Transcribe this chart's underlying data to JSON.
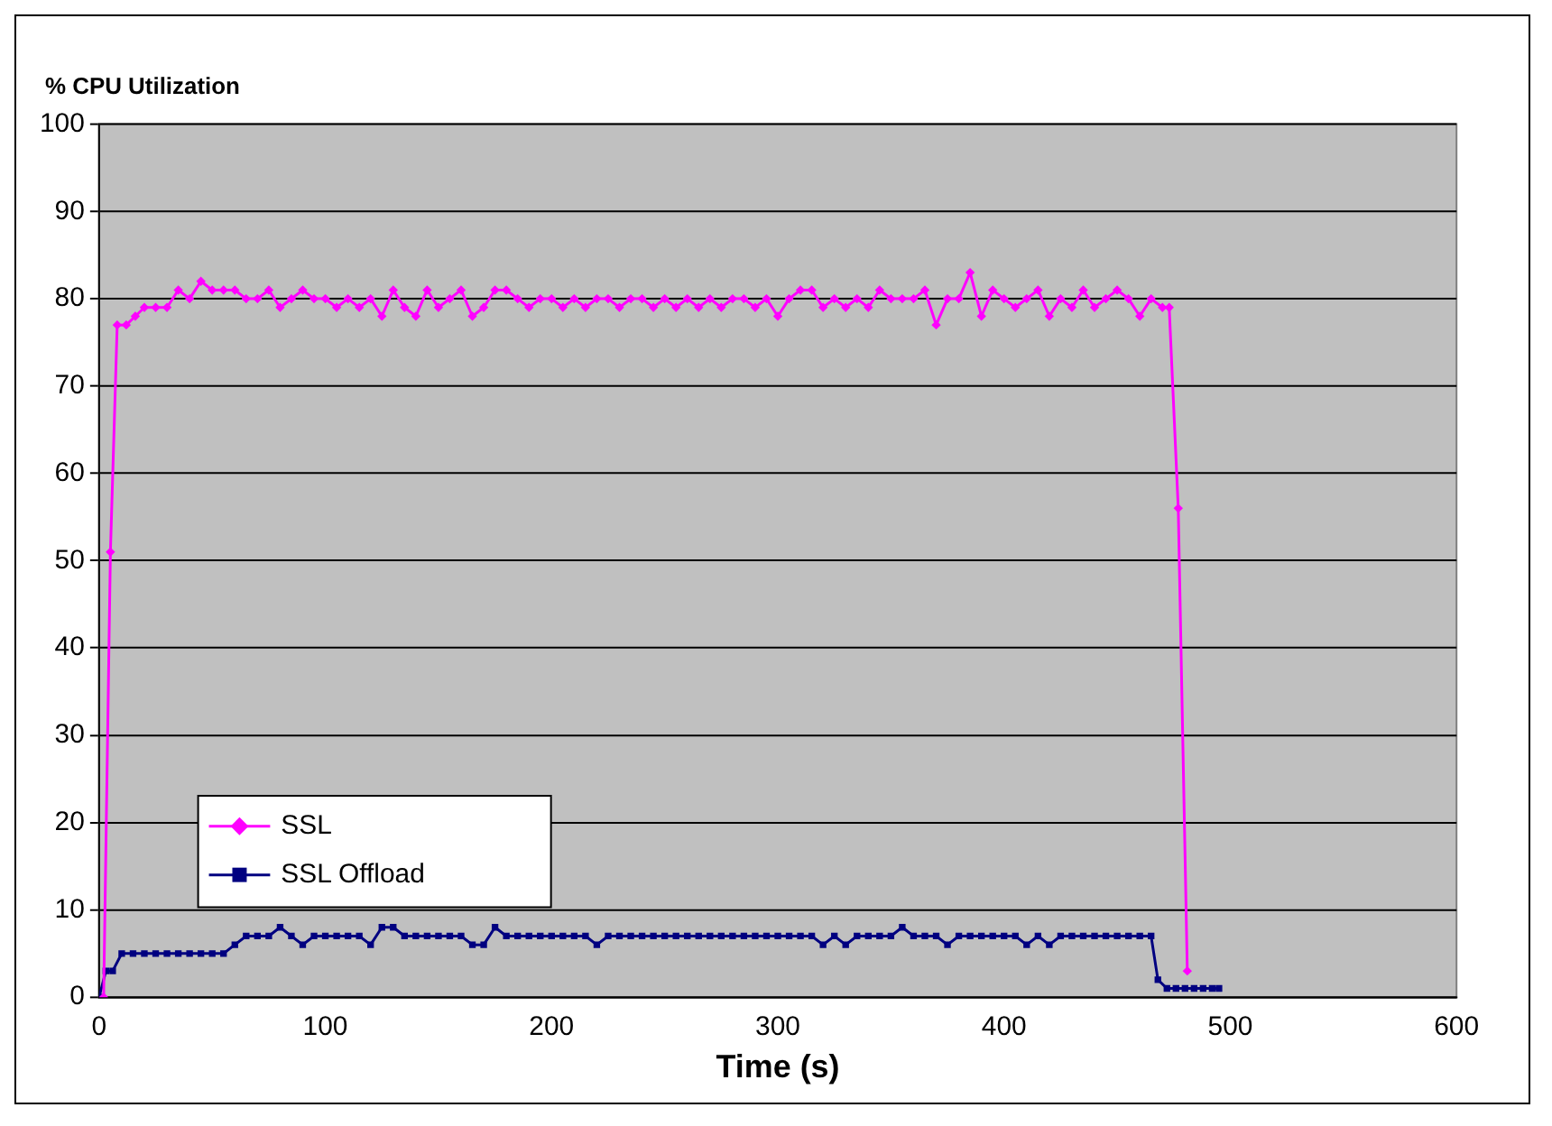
{
  "chart_data": {
    "type": "line",
    "xlabel": "Time (s)",
    "ylabel": "% CPU Utilization",
    "xlim": [
      0,
      600
    ],
    "xticks": [
      0,
      100,
      200,
      300,
      400,
      500,
      600
    ],
    "ylim": [
      0,
      100
    ],
    "yticks": [
      0,
      10,
      20,
      30,
      40,
      50,
      60,
      70,
      80,
      90,
      100
    ],
    "grid": "y",
    "legend": "bottom left",
    "series": [
      {
        "name": "SSL",
        "color": "#ff00ff",
        "marker": "diamond",
        "x": [
          2,
          5,
          8,
          12,
          16,
          20,
          25,
          30,
          35,
          40,
          45,
          50,
          55,
          60,
          65,
          70,
          75,
          80,
          85,
          90,
          95,
          100,
          105,
          110,
          115,
          120,
          125,
          130,
          135,
          140,
          145,
          150,
          155,
          160,
          165,
          170,
          175,
          180,
          185,
          190,
          195,
          200,
          205,
          210,
          215,
          220,
          225,
          230,
          235,
          240,
          245,
          250,
          255,
          260,
          265,
          270,
          275,
          280,
          285,
          290,
          295,
          300,
          305,
          310,
          315,
          320,
          325,
          330,
          335,
          340,
          345,
          350,
          355,
          360,
          365,
          370,
          375,
          380,
          385,
          390,
          395,
          400,
          405,
          410,
          415,
          420,
          425,
          430,
          435,
          440,
          445,
          450,
          455,
          460,
          465,
          470,
          473,
          477,
          481
        ],
        "values": [
          0,
          51,
          77,
          77,
          78,
          79,
          79,
          79,
          81,
          80,
          82,
          81,
          81,
          81,
          80,
          80,
          81,
          79,
          80,
          81,
          80,
          80,
          79,
          80,
          79,
          80,
          78,
          81,
          79,
          78,
          81,
          79,
          80,
          81,
          78,
          79,
          81,
          81,
          80,
          79,
          80,
          80,
          79,
          80,
          79,
          80,
          80,
          79,
          80,
          80,
          79,
          80,
          79,
          80,
          79,
          80,
          79,
          80,
          80,
          79,
          80,
          78,
          80,
          81,
          81,
          79,
          80,
          79,
          80,
          79,
          81,
          80,
          80,
          80,
          81,
          77,
          80,
          80,
          83,
          78,
          81,
          80,
          79,
          80,
          81,
          78,
          80,
          79,
          81,
          79,
          80,
          81,
          80,
          78,
          80,
          79,
          79,
          56,
          3
        ]
      },
      {
        "name": "SSL Offload",
        "color": "#000080",
        "marker": "square",
        "x": [
          0,
          3,
          6,
          10,
          15,
          20,
          25,
          30,
          35,
          40,
          45,
          50,
          55,
          60,
          65,
          70,
          75,
          80,
          85,
          90,
          95,
          100,
          105,
          110,
          115,
          120,
          125,
          130,
          135,
          140,
          145,
          150,
          155,
          160,
          165,
          170,
          175,
          180,
          185,
          190,
          195,
          200,
          205,
          210,
          215,
          220,
          225,
          230,
          235,
          240,
          245,
          250,
          255,
          260,
          265,
          270,
          275,
          280,
          285,
          290,
          295,
          300,
          305,
          310,
          315,
          320,
          325,
          330,
          335,
          340,
          345,
          350,
          355,
          360,
          365,
          370,
          375,
          380,
          385,
          390,
          395,
          400,
          405,
          410,
          415,
          420,
          425,
          430,
          435,
          440,
          445,
          450,
          455,
          460,
          465,
          468,
          472,
          476,
          480,
          484,
          488,
          492,
          495
        ],
        "values": [
          0,
          3,
          3,
          5,
          5,
          5,
          5,
          5,
          5,
          5,
          5,
          5,
          5,
          6,
          7,
          7,
          7,
          8,
          7,
          6,
          7,
          7,
          7,
          7,
          7,
          6,
          8,
          8,
          7,
          7,
          7,
          7,
          7,
          7,
          6,
          6,
          8,
          7,
          7,
          7,
          7,
          7,
          7,
          7,
          7,
          6,
          7,
          7,
          7,
          7,
          7,
          7,
          7,
          7,
          7,
          7,
          7,
          7,
          7,
          7,
          7,
          7,
          7,
          7,
          7,
          6,
          7,
          6,
          7,
          7,
          7,
          7,
          8,
          7,
          7,
          7,
          6,
          7,
          7,
          7,
          7,
          7,
          7,
          6,
          7,
          6,
          7,
          7,
          7,
          7,
          7,
          7,
          7,
          7,
          7,
          2,
          1,
          1,
          1,
          1,
          1,
          1,
          1
        ]
      }
    ]
  }
}
